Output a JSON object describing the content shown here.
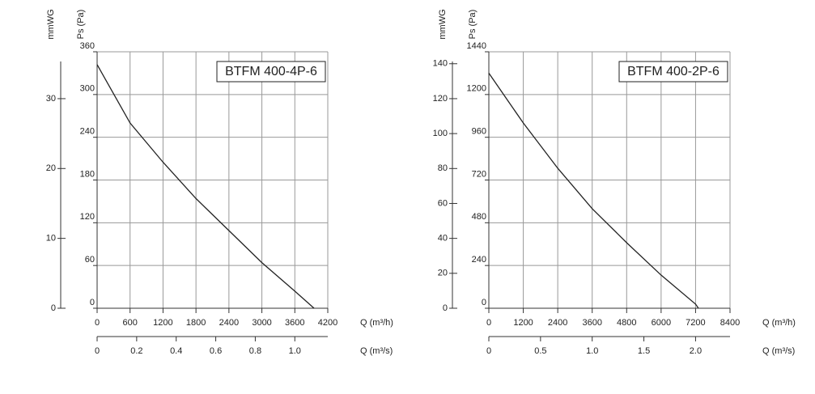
{
  "chart_data": [
    {
      "type": "line",
      "title": "BTFM 400-4P-6",
      "ylabel": "Ps (Pa)",
      "y2label": "mmWG",
      "xlabel": "Q (m³/h)",
      "x2label": "Q (m³/s)",
      "x": [
        0,
        600,
        1200,
        1800,
        2400,
        3000,
        3600,
        3950
      ],
      "values": [
        342,
        260,
        205,
        154,
        109,
        64,
        24,
        0
      ],
      "color": "#222222",
      "xlim": [
        0,
        4200
      ],
      "xticks": [
        0,
        600,
        1200,
        1800,
        2400,
        3000,
        3600,
        4200
      ],
      "ylim": [
        0,
        360
      ],
      "yticks": [
        0,
        60,
        120,
        180,
        240,
        300,
        360
      ],
      "y2lim": [
        0,
        36.71
      ],
      "y2ticks": [
        0,
        10,
        20,
        30
      ],
      "x2lim": [
        0,
        1.1667
      ],
      "x2ticks": [
        0,
        0.2,
        0.4,
        0.6,
        0.8,
        {
          "value": 1,
          "label": "1.0"
        }
      ],
      "grid": true
    },
    {
      "type": "line",
      "title": "BTFM 400-2P-6",
      "ylabel": "Ps (Pa)",
      "y2label": "mmWG",
      "xlabel": "Q (m³/h)",
      "x2label": "Q (m³/s)",
      "x": [
        0,
        1200,
        2400,
        3600,
        4800,
        6000,
        7200,
        7300
      ],
      "values": [
        1320,
        1040,
        786,
        559,
        368,
        186,
        23,
        0
      ],
      "color": "#222222",
      "xlim": [
        0,
        8400
      ],
      "xticks": [
        0,
        1200,
        2400,
        3600,
        4800,
        6000,
        7200,
        8400
      ],
      "ylim": [
        0,
        1440
      ],
      "yticks": [
        0,
        240,
        480,
        720,
        960,
        1200,
        1440
      ],
      "y2lim": [
        0,
        146.84
      ],
      "y2ticks": [
        0,
        20,
        40,
        60,
        80,
        100,
        120,
        140
      ],
      "x2lim": [
        0,
        2.3333
      ],
      "x2ticks": [
        0,
        0.5,
        {
          "value": 1,
          "label": "1.0"
        },
        1.5,
        {
          "value": 2,
          "label": "2.0"
        }
      ],
      "grid": true
    }
  ]
}
